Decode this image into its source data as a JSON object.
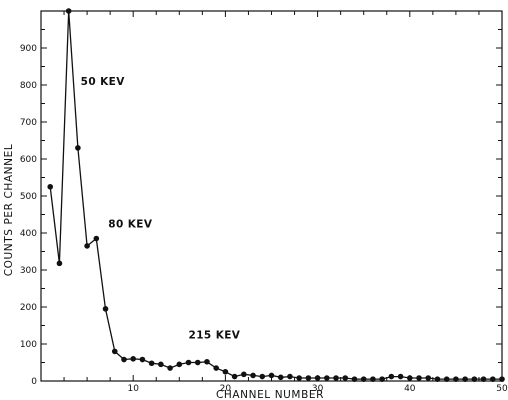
{
  "chart_data": {
    "type": "line",
    "xlabel": "CHANNEL NUMBER",
    "ylabel": "COUNTS PER CHANNEL",
    "xlim": [
      0,
      50
    ],
    "ylim": [
      0,
      1000
    ],
    "x_ticks": [
      10,
      20,
      30,
      40,
      50
    ],
    "x_tick_labels": [
      "10",
      "20",
      "30",
      "40",
      "50"
    ],
    "y_ticks": [
      0,
      100,
      200,
      300,
      400,
      500,
      600,
      700,
      800,
      900
    ],
    "y_tick_labels": [
      "0",
      "100",
      "200",
      "300",
      "400",
      "500",
      "600",
      "700",
      "800",
      "900"
    ],
    "grid": false,
    "annotations": [
      {
        "text": "50 KEV",
        "x": 4.3,
        "y": 800
      },
      {
        "text": "80 KEV",
        "x": 7.3,
        "y": 415
      },
      {
        "text": "215 KEV",
        "x": 16.0,
        "y": 115
      }
    ],
    "series": [
      {
        "x": [
          1,
          2,
          3,
          4,
          5,
          6,
          7,
          8,
          9,
          10,
          11,
          12,
          13,
          14,
          15,
          16,
          17,
          18,
          19,
          20,
          21,
          22,
          23,
          24,
          25,
          26,
          27,
          28,
          29,
          30,
          31,
          32,
          33,
          34,
          35,
          36,
          37,
          38,
          39,
          40,
          41,
          42,
          43,
          44,
          45,
          46,
          47,
          48,
          49,
          50
        ],
        "values": [
          525,
          318,
          1000,
          630,
          365,
          385,
          195,
          80,
          58,
          60,
          58,
          48,
          45,
          35,
          45,
          50,
          50,
          52,
          35,
          25,
          12,
          18,
          15,
          12,
          15,
          10,
          12,
          8,
          8,
          8,
          8,
          8,
          8,
          5,
          5,
          5,
          5,
          12,
          12,
          8,
          8,
          8,
          5,
          5,
          5,
          5,
          5,
          5,
          5,
          5
        ]
      }
    ]
  }
}
